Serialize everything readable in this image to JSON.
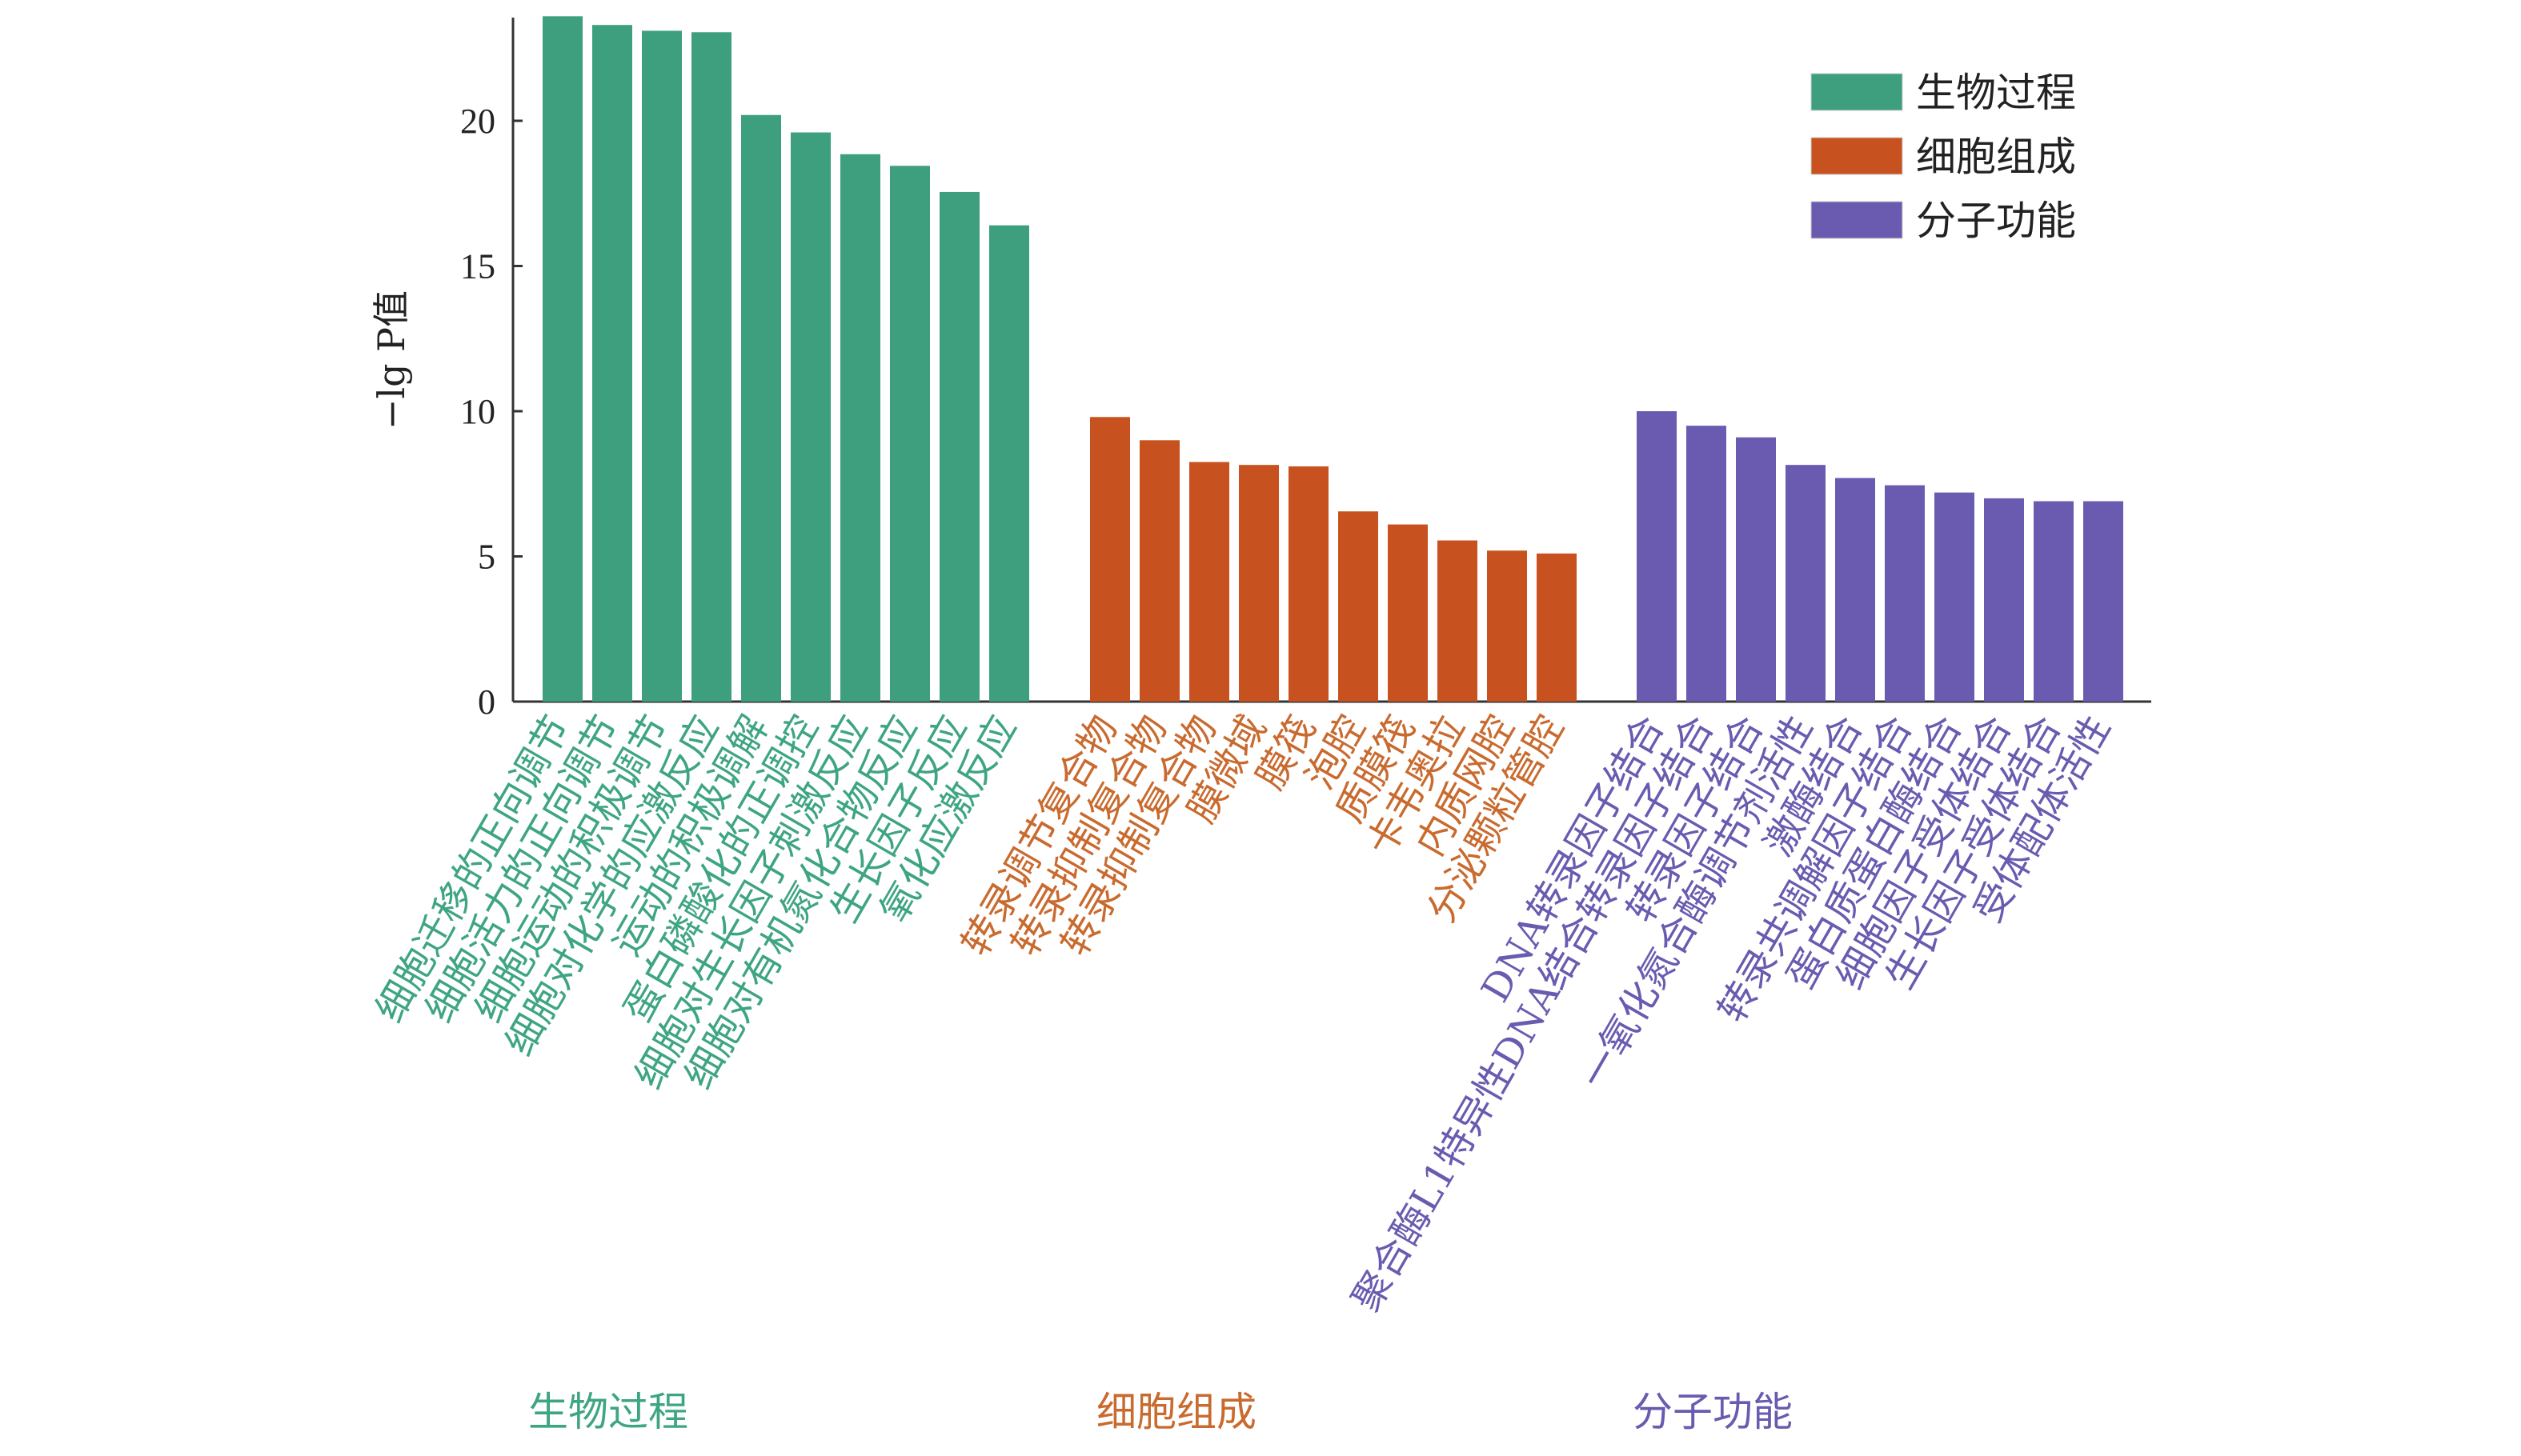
{
  "chart_data": {
    "type": "bar",
    "ylabel": "−lg P值",
    "ylim": [
      0,
      24
    ],
    "yticks": [
      0,
      5,
      10,
      15,
      20
    ],
    "grid": false,
    "legend_position": "top-right",
    "legend": [
      {
        "label": "生物过程",
        "color": "#3e9f7f"
      },
      {
        "label": "细胞组成",
        "color": "#c8521f"
      },
      {
        "label": "分子功能",
        "color": "#6a5bb0"
      }
    ],
    "groups": [
      {
        "name": "生物过程",
        "color": "#3e9f7f",
        "label_color": "#3ea581",
        "categories": [
          "细胞迁移的正向调节",
          "细胞活力的正向调节",
          "细胞运动的积极调节",
          "细胞对化学的应激反应",
          "运动的积极调解",
          "蛋白磷酸化的正调控",
          "细胞对生长因子刺激反应",
          "细胞对有机氮化合物反应",
          "生长因子反应",
          "氧化应激反应"
        ],
        "values": [
          23.6,
          23.3,
          23.1,
          23.05,
          20.2,
          19.6,
          18.85,
          18.45,
          17.55,
          16.4
        ]
      },
      {
        "name": "细胞组成",
        "color": "#c8521f",
        "label_color": "#c96a2e",
        "categories": [
          "转录调节复合物",
          "转录抑制复合物",
          "转录抑制复合物",
          "膜微域",
          "膜筏",
          "泡腔",
          "质膜筏",
          "卡韦奥拉",
          "内质网腔",
          "分泌颗粒管腔"
        ],
        "values": [
          9.8,
          9.0,
          8.25,
          8.15,
          8.1,
          6.55,
          6.1,
          5.55,
          5.2,
          5.1
        ]
      },
      {
        "name": "分子功能",
        "color": "#6a5bb0",
        "label_color": "#6a5bb0",
        "categories": [
          "DNA转录因子结合",
          "聚合酶L1特异性DNA结合转录因子结合",
          "转录因子结合",
          "一氧化氮合酶调节剂活性",
          "激酶结合",
          "转录共调解因子结合",
          "蛋白质蛋白酶结合",
          "细胞因子受体结合",
          "生长因子受体结合",
          "受体配体活性"
        ],
        "values": [
          10.0,
          9.5,
          9.1,
          8.15,
          7.7,
          7.45,
          7.2,
          7.0,
          6.9,
          6.9
        ]
      }
    ]
  }
}
